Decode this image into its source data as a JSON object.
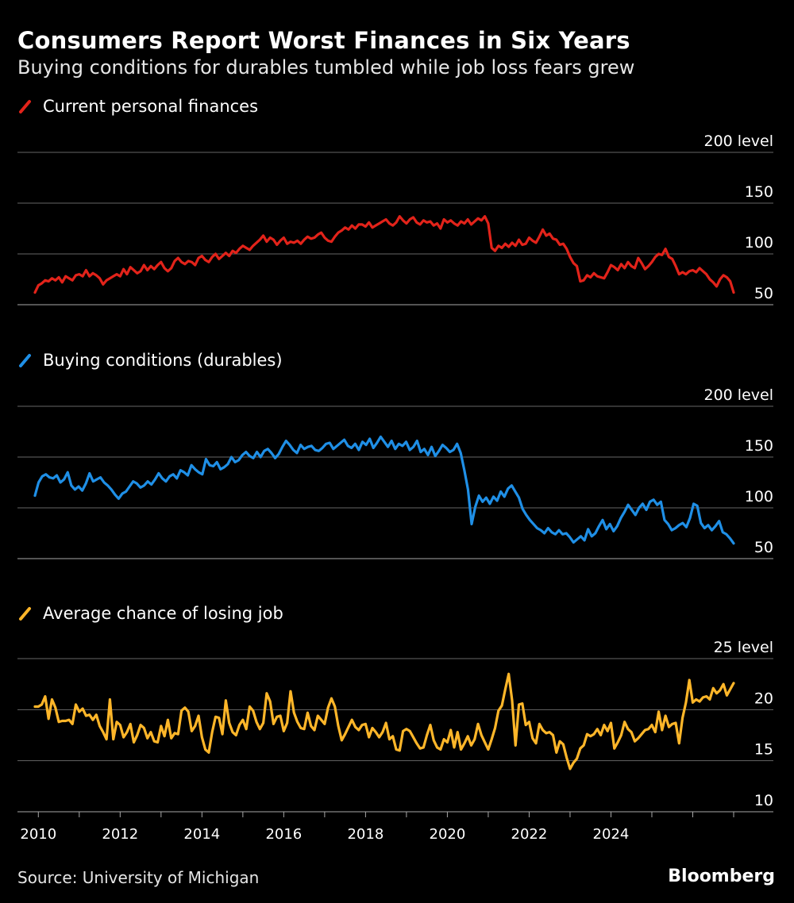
{
  "header": {
    "title": "Consumers Report Worst Finances in Six Years",
    "subtitle": "Buying conditions for durables tumbled while job loss fears grew"
  },
  "footer": {
    "source": "Source: University of Michigan",
    "brand": "Bloomberg"
  },
  "chart_data": [
    {
      "type": "line",
      "legend": "Current personal finances",
      "color": "#e2231a",
      "y_ticks": [
        "50",
        "100",
        "150",
        "200 level"
      ],
      "ylim": [
        50,
        200
      ],
      "x_ticks": [
        "2010",
        "2012",
        "2014",
        "2016",
        "2018",
        "2020",
        "2022",
        "2024"
      ],
      "series": [
        {
          "name": "Current personal finances",
          "start": "2009-12",
          "frequency": "monthly",
          "values": [
            62,
            69,
            71,
            74,
            73,
            76,
            74,
            77,
            72,
            78,
            76,
            74,
            79,
            80,
            78,
            84,
            78,
            81,
            79,
            76,
            70,
            74,
            76,
            78,
            80,
            78,
            85,
            80,
            87,
            84,
            81,
            83,
            89,
            84,
            88,
            85,
            89,
            92,
            86,
            83,
            86,
            93,
            96,
            92,
            90,
            93,
            92,
            89,
            96,
            98,
            94,
            92,
            97,
            100,
            95,
            98,
            101,
            98,
            103,
            101,
            105,
            108,
            106,
            104,
            108,
            111,
            114,
            118,
            112,
            116,
            114,
            109,
            113,
            116,
            110,
            112,
            111,
            113,
            110,
            114,
            117,
            115,
            116,
            119,
            121,
            116,
            113,
            112,
            117,
            121,
            123,
            126,
            124,
            128,
            125,
            129,
            129,
            127,
            131,
            126,
            128,
            130,
            132,
            134,
            130,
            128,
            131,
            137,
            133,
            130,
            134,
            136,
            131,
            129,
            133,
            131,
            132,
            128,
            130,
            125,
            134,
            131,
            133,
            130,
            128,
            132,
            130,
            134,
            129,
            132,
            135,
            133,
            137,
            130,
            106,
            103,
            108,
            106,
            110,
            107,
            111,
            108,
            114,
            109,
            110,
            116,
            113,
            111,
            117,
            124,
            118,
            120,
            115,
            114,
            109,
            110,
            105,
            97,
            91,
            88,
            73,
            74,
            79,
            77,
            81,
            78,
            77,
            76,
            82,
            89,
            87,
            84,
            90,
            86,
            92,
            88,
            86,
            96,
            91,
            85,
            88,
            92,
            97,
            100,
            99,
            105,
            97,
            95,
            88,
            80,
            82,
            80,
            83,
            84,
            82,
            86,
            83,
            80,
            75,
            72,
            68,
            75,
            79,
            77,
            73,
            62
          ]
        }
      ]
    },
    {
      "type": "line",
      "legend": "Buying conditions (durables)",
      "color": "#1f8fe6",
      "y_ticks": [
        "50",
        "100",
        "150",
        "200 level"
      ],
      "ylim": [
        50,
        200
      ],
      "x_ticks": [
        "2010",
        "2012",
        "2014",
        "2016",
        "2018",
        "2020",
        "2022",
        "2024"
      ],
      "series": [
        {
          "name": "Buying conditions (durables)",
          "start": "2009-12",
          "frequency": "monthly",
          "values": [
            112,
            125,
            131,
            133,
            130,
            129,
            132,
            125,
            128,
            135,
            122,
            118,
            121,
            117,
            124,
            134,
            126,
            128,
            130,
            125,
            122,
            118,
            113,
            109,
            114,
            116,
            121,
            126,
            124,
            120,
            122,
            126,
            123,
            128,
            134,
            129,
            126,
            131,
            133,
            129,
            137,
            135,
            132,
            142,
            138,
            135,
            133,
            148,
            142,
            141,
            145,
            138,
            140,
            143,
            150,
            145,
            147,
            152,
            155,
            151,
            149,
            155,
            150,
            156,
            158,
            154,
            149,
            153,
            160,
            166,
            162,
            157,
            154,
            162,
            158,
            160,
            161,
            157,
            156,
            159,
            163,
            164,
            158,
            161,
            164,
            167,
            161,
            159,
            163,
            157,
            165,
            162,
            168,
            159,
            164,
            170,
            165,
            160,
            166,
            158,
            163,
            161,
            165,
            157,
            160,
            166,
            155,
            158,
            152,
            160,
            151,
            156,
            162,
            159,
            155,
            157,
            163,
            154,
            137,
            118,
            84,
            101,
            112,
            106,
            110,
            104,
            111,
            107,
            116,
            111,
            119,
            122,
            116,
            110,
            99,
            93,
            88,
            84,
            80,
            78,
            75,
            80,
            76,
            74,
            78,
            74,
            75,
            71,
            66,
            69,
            72,
            68,
            79,
            72,
            75,
            82,
            88,
            79,
            84,
            77,
            82,
            90,
            96,
            103,
            98,
            93,
            100,
            104,
            98,
            106,
            108,
            103,
            106,
            88,
            84,
            78,
            80,
            83,
            85,
            81,
            90,
            104,
            102,
            85,
            80,
            83,
            78,
            82,
            87,
            76,
            74,
            70,
            65
          ]
        }
      ]
    },
    {
      "type": "line",
      "legend": "Average chance of losing job",
      "color": "#ffb629",
      "y_ticks": [
        "10",
        "15",
        "20",
        "25 level"
      ],
      "ylim": [
        10,
        25
      ],
      "x_ticks": [
        "2010",
        "2012",
        "2014",
        "2016",
        "2018",
        "2020",
        "2022",
        "2024"
      ],
      "series": [
        {
          "name": "Average chance of losing job",
          "start": "2009-12",
          "frequency": "monthly",
          "values": [
            20.3,
            20.3,
            20.5,
            21.3,
            19.1,
            21.0,
            20.2,
            18.8,
            18.9,
            18.9,
            19.0,
            18.6,
            20.5,
            19.8,
            20.1,
            19.4,
            19.5,
            19.0,
            19.5,
            18.4,
            17.8,
            17.1,
            21.0,
            17.1,
            18.8,
            18.5,
            17.3,
            17.8,
            18.6,
            16.8,
            17.5,
            18.5,
            18.2,
            17.2,
            17.8,
            16.9,
            16.8,
            18.4,
            17.4,
            19.0,
            17.2,
            17.7,
            17.6,
            19.9,
            20.2,
            19.8,
            17.9,
            18.4,
            19.4,
            17.3,
            16.1,
            15.8,
            17.8,
            19.3,
            19.2,
            17.6,
            20.9,
            18.7,
            17.8,
            17.5,
            18.5,
            19.0,
            18.1,
            20.3,
            19.9,
            18.8,
            18.1,
            18.7,
            21.6,
            20.8,
            18.6,
            19.3,
            19.4,
            17.9,
            18.7,
            21.8,
            19.7,
            18.8,
            18.2,
            18.1,
            19.7,
            18.4,
            18.0,
            19.4,
            19.0,
            18.6,
            20.2,
            21.1,
            20.3,
            18.4,
            17.0,
            17.6,
            18.3,
            19.0,
            18.3,
            18.0,
            18.5,
            18.6,
            17.3,
            18.2,
            17.8,
            17.3,
            17.8,
            18.7,
            17.1,
            17.4,
            16.1,
            16.0,
            17.9,
            18.1,
            17.9,
            17.3,
            16.7,
            16.2,
            16.3,
            17.5,
            18.5,
            17.0,
            16.3,
            16.1,
            17.1,
            16.8,
            18.0,
            16.3,
            17.8,
            16.1,
            16.7,
            17.4,
            16.5,
            17.1,
            18.6,
            17.5,
            16.8,
            16.1,
            17.1,
            18.2,
            19.9,
            20.4,
            22.0,
            23.5,
            20.9,
            16.5,
            20.5,
            20.6,
            18.5,
            18.8,
            17.2,
            16.7,
            18.6,
            18.0,
            17.7,
            17.8,
            17.5,
            15.8,
            16.9,
            16.6,
            15.3,
            14.2,
            14.8,
            15.2,
            16.2,
            16.5,
            17.6,
            17.4,
            17.6,
            18.1,
            17.5,
            18.5,
            17.9,
            18.7,
            16.2,
            16.8,
            17.5,
            18.8,
            18.1,
            17.8,
            16.9,
            17.2,
            17.6,
            18.0,
            18.1,
            18.5,
            17.8,
            19.8,
            18.0,
            19.4,
            18.3,
            18.6,
            18.7,
            16.7,
            19.2,
            20.7,
            22.9,
            20.7,
            21.0,
            20.8,
            21.2,
            21.3,
            21.0,
            22.1,
            21.6,
            21.9,
            22.5,
            21.4,
            22.0,
            22.6
          ]
        }
      ]
    }
  ]
}
